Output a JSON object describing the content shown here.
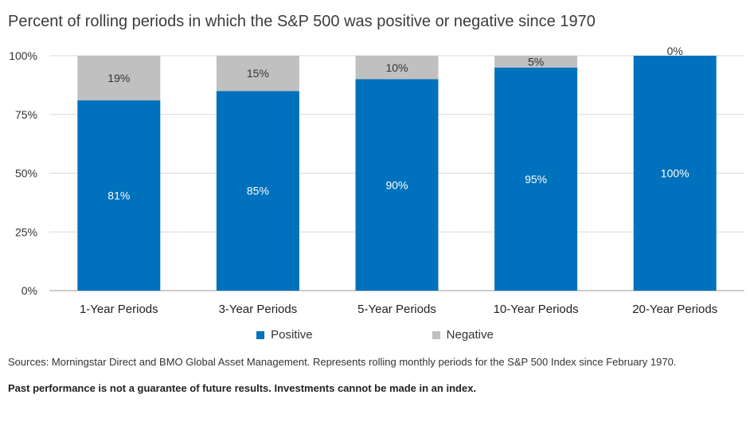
{
  "title": "Percent of rolling periods in which the S&P 500 was positive or negative since 1970",
  "chart_data": {
    "type": "bar",
    "stacked": true,
    "categories": [
      "1-Year Periods",
      "3-Year Periods",
      "5-Year Periods",
      "10-Year Periods",
      "20-Year Periods"
    ],
    "series": [
      {
        "name": "Positive",
        "values": [
          81,
          85,
          90,
          95,
          100
        ],
        "labels": [
          "81%",
          "85%",
          "90%",
          "95%",
          "100%"
        ],
        "color": "#0071BC"
      },
      {
        "name": "Negative",
        "values": [
          19,
          15,
          10,
          5,
          0
        ],
        "labels": [
          "19%",
          "15%",
          "10%",
          "5%",
          "0%"
        ],
        "color": "#C0C0C0"
      }
    ],
    "ylim": [
      0,
      100
    ],
    "yticks": [
      0,
      25,
      50,
      75,
      100
    ],
    "ytick_labels": [
      "0%",
      "25%",
      "50%",
      "75%",
      "100%"
    ],
    "legend": "bottom-center"
  },
  "legend": {
    "positive_label": "Positive",
    "negative_label": "Negative"
  },
  "footer": {
    "source": "Sources: Morningstar Direct and BMO Global Asset Management. Represents rolling monthly periods for the S&P 500 Index since February 1970.",
    "disclaimer": "Past performance is not a guarantee of future results. Investments cannot be made in an index."
  }
}
